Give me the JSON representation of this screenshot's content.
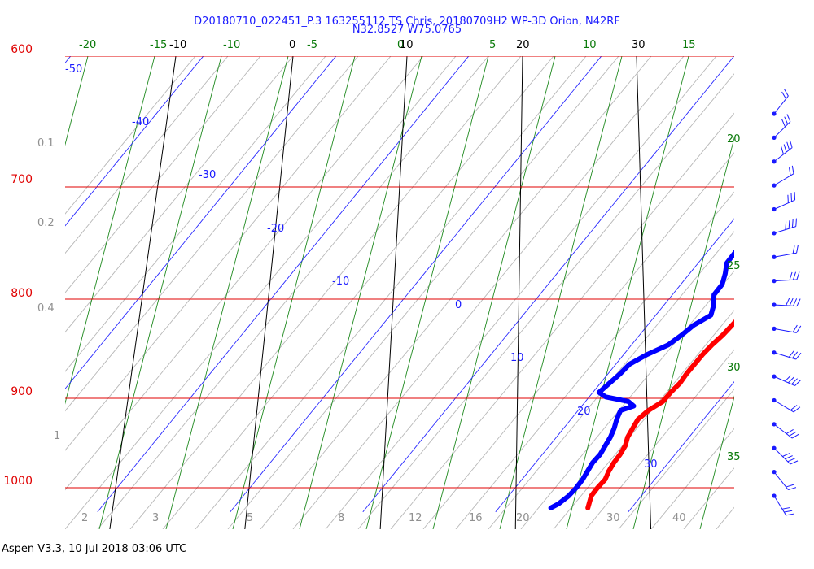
{
  "header": {
    "title_line1": "D20180710_022451_P.3 163255112 TS Chris, 20180709H2 WP-3D Orion, N42RF",
    "title_line2": "N32.8527 W75.0765"
  },
  "footer": {
    "text": "Aspen V3.3, 10 Jul 2018  03:06 UTC"
  },
  "chart_data": {
    "type": "line",
    "chart_kind": "Skew-T log-P sounding",
    "pressure_labels": [
      "600",
      "700",
      "800",
      "900",
      "1000"
    ],
    "pressure_levels": [
      600,
      700,
      800,
      900,
      1000
    ],
    "temperature_labels": [
      "-50",
      "-40",
      "-30",
      "-20",
      "-10",
      "0",
      "10",
      "20",
      "30"
    ],
    "mixing_ratio_labels": [
      "0.1",
      "0.2",
      "0.4",
      "1",
      "2",
      "3",
      "5",
      "8",
      "12",
      "16",
      "20",
      "30",
      "40"
    ],
    "dry_adiabat_labels": [
      "-20",
      "-15",
      "-10",
      "-5",
      "0",
      "5",
      "10",
      "15"
    ],
    "moist_adiabat_labels": [
      "20",
      "25",
      "30",
      "35"
    ],
    "black_isotherm_labels": [
      "-10",
      "0",
      "10",
      "20",
      "30"
    ],
    "series": [
      {
        "name": "Temperature",
        "color": "#ff0000",
        "points": [
          [
            1025,
            25.9
          ],
          [
            1010,
            25.9
          ],
          [
            1000,
            26.2
          ],
          [
            990,
            26.6
          ],
          [
            980,
            26.7
          ],
          [
            970,
            26.9
          ],
          [
            960,
            27.2
          ],
          [
            950,
            27.4
          ],
          [
            940,
            27.4
          ],
          [
            930,
            27.6
          ],
          [
            920,
            27.8
          ],
          [
            910,
            28.4
          ],
          [
            900,
            29.3
          ],
          [
            890,
            29.7
          ],
          [
            880,
            30.2
          ],
          [
            870,
            30.5
          ],
          [
            860,
            30.9
          ],
          [
            850,
            31.3
          ],
          [
            840,
            31.8
          ],
          [
            830,
            32.4
          ],
          [
            820,
            32.9
          ],
          [
            810,
            33.4
          ],
          [
            800,
            34.0
          ],
          [
            790,
            34.4
          ],
          [
            780,
            34.6
          ],
          [
            770,
            34.8
          ],
          [
            760,
            35.2
          ],
          [
            750,
            35.6
          ],
          [
            740,
            35.9
          ],
          [
            730,
            36.1
          ],
          [
            720,
            36.4
          ],
          [
            710,
            36.7
          ],
          [
            700,
            36.9
          ],
          [
            690,
            37.0
          ]
        ]
      },
      {
        "name": "Dewpoint",
        "color": "#0000ff",
        "points": [
          [
            1025,
            23.1
          ],
          [
            1020,
            23.6
          ],
          [
            1010,
            24.2
          ],
          [
            1000,
            24.6
          ],
          [
            990,
            24.9
          ],
          [
            980,
            25.1
          ],
          [
            970,
            25.3
          ],
          [
            960,
            25.7
          ],
          [
            950,
            25.9
          ],
          [
            940,
            26.1
          ],
          [
            930,
            26.2
          ],
          [
            920,
            26.2
          ],
          [
            910,
            26.3
          ],
          [
            905,
            27.2
          ],
          [
            900,
            26.7
          ],
          [
            895,
            24.9
          ],
          [
            890,
            24.3
          ],
          [
            880,
            24.9
          ],
          [
            870,
            25.5
          ],
          [
            860,
            26.0
          ],
          [
            850,
            27.1
          ],
          [
            840,
            28.5
          ],
          [
            830,
            29.3
          ],
          [
            820,
            30.0
          ],
          [
            810,
            31.1
          ],
          [
            800,
            31.1
          ],
          [
            790,
            30.9
          ],
          [
            780,
            31.3
          ],
          [
            770,
            31.3
          ],
          [
            760,
            31.2
          ],
          [
            750,
            31.6
          ],
          [
            740,
            32.1
          ],
          [
            730,
            32.2
          ],
          [
            720,
            32.6
          ],
          [
            710,
            32.6
          ],
          [
            700,
            33.1
          ],
          [
            690,
            33.3
          ],
          [
            680,
            33.6
          ],
          [
            670,
            33.5
          ],
          [
            660,
            34.0
          ],
          [
            650,
            34.1
          ],
          [
            645,
            34.5
          ],
          [
            640,
            34.5
          ]
        ]
      }
    ],
    "wind_barbs_count": 17,
    "xlabel": "",
    "ylabel": ""
  }
}
